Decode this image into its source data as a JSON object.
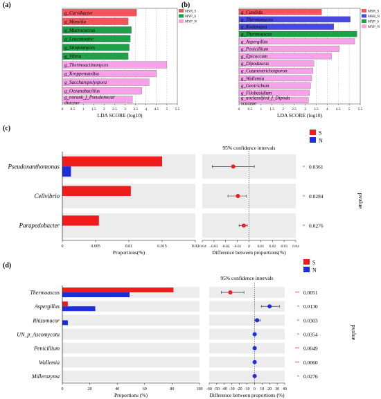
{
  "chart_data": [
    {
      "panel": "(a)",
      "type": "bar",
      "orientation": "horizontal",
      "xlabel": "LDA SCORE (log10)",
      "xlim": [
        0,
        5.5
      ],
      "xticks": [
        "0",
        "0.5",
        "1",
        "1.5",
        "2",
        "2.5",
        "3",
        "3.5",
        "4",
        "4.5",
        "5",
        "5.5"
      ],
      "grid": true,
      "legend_placement": "top-right",
      "legend": [
        {
          "name": "MSH_S",
          "color": "#f4545c"
        },
        {
          "name": "MYP_S",
          "color": "#1ea049"
        },
        {
          "name": "MYP_N",
          "color": "#f7a2e8"
        }
      ],
      "bars": [
        {
          "label": "g_Curvibacter",
          "value": 3.55,
          "group": "MSH_S"
        },
        {
          "label": "g_Massilia",
          "value": 3.15,
          "group": "MSH_S"
        },
        {
          "label": "g_Macrococcus",
          "value": 3.3,
          "group": "MYP_S"
        },
        {
          "label": "g_Leuconostoc",
          "value": 3.25,
          "group": "MYP_S"
        },
        {
          "label": "g_Streptomyces",
          "value": 3.2,
          "group": "MYP_S"
        },
        {
          "label": "g_Vibrio",
          "value": 3.15,
          "group": "MYP_S"
        },
        {
          "label": "g_Thermoactinomyces",
          "value": 5.0,
          "group": "MYP_N"
        },
        {
          "label": "g_Kroppenstedtia",
          "value": 4.5,
          "group": "MYP_N"
        },
        {
          "label": "g_Saccharopolyspora",
          "value": 4.15,
          "group": "MYP_N"
        },
        {
          "label": "g_Oceanobacillus",
          "value": 3.8,
          "group": "MYP_N"
        },
        {
          "label": "g_norank_f_Pseudonocar\ndiaceae",
          "value": 3.35,
          "group": "MYP_N"
        }
      ]
    },
    {
      "panel": "(b)",
      "type": "bar",
      "orientation": "horizontal",
      "xlabel": "LDA SCORE (log10)",
      "xlim": [
        0,
        5.5
      ],
      "xticks": [
        "0",
        "0.5",
        "1",
        "1.5",
        "2",
        "2.5",
        "3",
        "3.5",
        "4",
        "4.5",
        "5",
        "5.5"
      ],
      "grid": true,
      "legend_placement": "top-right",
      "legend": [
        {
          "name": "MSH_S",
          "color": "#f4545c"
        },
        {
          "name": "MSH_N",
          "color": "#4848e0"
        },
        {
          "name": "MYP_S",
          "color": "#1ea049"
        },
        {
          "name": "MYP_N",
          "color": "#f7a2e8"
        }
      ],
      "bars": [
        {
          "label": "g_Candida",
          "value": 3.75,
          "group": "MSH_S"
        },
        {
          "label": "g_Thermomyces",
          "value": 5.05,
          "group": "MSH_N"
        },
        {
          "label": "g_Kodamaea",
          "value": 4.3,
          "group": "MSH_N"
        },
        {
          "label": "g_Thermoascus",
          "value": 5.35,
          "group": "MYP_S"
        },
        {
          "label": "g_Aspergillus",
          "value": 5.25,
          "group": "MYP_N"
        },
        {
          "label": "g_Penicillium",
          "value": 4.55,
          "group": "MYP_N"
        },
        {
          "label": "g_Epicoccum",
          "value": 4.2,
          "group": "MYP_N"
        },
        {
          "label": "g_Dipodascus",
          "value": 3.4,
          "group": "MYP_N"
        },
        {
          "label": "g_Cutaneotrichosporon",
          "value": 3.35,
          "group": "MYP_N"
        },
        {
          "label": "g_Wallemia",
          "value": 3.3,
          "group": "MYP_N"
        },
        {
          "label": "g_Geotrichum",
          "value": 3.25,
          "group": "MYP_N"
        },
        {
          "label": "g_Filobasidium",
          "value": 3.2,
          "group": "MYP_N"
        },
        {
          "label": "g_unclassified_f_Dipoda\nscaceae",
          "value": 3.15,
          "group": "MYP_N"
        }
      ]
    },
    {
      "panel": "(c)",
      "type": "bar",
      "orientation": "horizontal",
      "xlabel": "Proportions(%)",
      "xlim": [
        0,
        0.02
      ],
      "xticks": [
        "0",
        "0.005",
        "0.01",
        "0.015",
        "0.02"
      ],
      "legend": [
        {
          "name": "S",
          "color": "#ee1c1c"
        },
        {
          "name": "N",
          "color": "#1d2ed8"
        }
      ],
      "legend_placement": "top-right",
      "categories": [
        "Pseudoxanthomonas",
        "Cellvibrio",
        "Parapedobacter"
      ],
      "series": [
        {
          "name": "S",
          "values": [
            0.015,
            0.0103,
            0.0055
          ]
        },
        {
          "name": "N",
          "values": [
            0.0013,
            0.0,
            0.0
          ]
        }
      ],
      "ci": {
        "title": "95% confidence intervals",
        "xlabel": "Difference between proportions(%)",
        "xlim": [
          -0.04,
          0.04
        ],
        "xticks": [
          "-0.04",
          "-0.03",
          "-0.02",
          "-0.01",
          "0",
          "0.01",
          "0.02",
          "0.03",
          "0.04"
        ],
        "points": [
          {
            "est": -0.0135,
            "lo": -0.0315,
            "hi": 0.0045,
            "color": "#ee1c1c"
          },
          {
            "est": -0.0095,
            "lo": -0.018,
            "hi": -0.0025,
            "color": "#ee1c1c"
          },
          {
            "est": -0.0045,
            "lo": -0.0085,
            "hi": -0.0015,
            "color": "#ee1c1c"
          }
        ]
      },
      "pvalue_label": "pvalue",
      "pvalues": [
        {
          "stars": "*",
          "value": "0.0361"
        },
        {
          "stars": "*",
          "value": "0.0284"
        },
        {
          "stars": "*",
          "value": "0.0276"
        }
      ]
    },
    {
      "panel": "(d)",
      "type": "bar",
      "orientation": "horizontal",
      "xlabel": "Proportions (%)",
      "xlim": [
        0,
        100
      ],
      "xticks": [
        "0",
        "20",
        "40",
        "60",
        "80",
        "100"
      ],
      "legend": [
        {
          "name": "S",
          "color": "#ee1c1c"
        },
        {
          "name": "N",
          "color": "#1d2ed8"
        }
      ],
      "legend_placement": "top-right",
      "categories": [
        "Thermoascus",
        "Aspergillus",
        "Rhizomucor",
        "UN_p_Ascomycota",
        "Penicillium",
        "Wallemia",
        "Millerozyma"
      ],
      "series": [
        {
          "name": "S",
          "values": [
            81,
            4,
            0,
            0,
            0,
            0,
            0
          ]
        },
        {
          "name": "N",
          "values": [
            49,
            24,
            4,
            0,
            0,
            0,
            0
          ]
        }
      ],
      "ci": {
        "title": "95% confidence intervals",
        "xlabel": "Difference between proportions (%)",
        "xlim": [
          -60,
          40
        ],
        "xticks": [
          "-60",
          "-50",
          "-40",
          "-30",
          "-20",
          "-10",
          "0",
          "10",
          "20",
          "30",
          "40"
        ],
        "points": [
          {
            "est": -32,
            "lo": -44,
            "hi": -14,
            "color": "#ee1c1c"
          },
          {
            "est": 20,
            "lo": 9,
            "hi": 33,
            "color": "#1d2ed8"
          },
          {
            "est": 3.5,
            "lo": 0.5,
            "hi": 7.5,
            "color": "#1d2ed8"
          },
          {
            "est": 0.2,
            "lo": -0.3,
            "hi": 0.8,
            "color": "#1d2ed8"
          },
          {
            "est": 0.2,
            "lo": -0.3,
            "hi": 0.8,
            "color": "#1d2ed8"
          },
          {
            "est": 0.2,
            "lo": -0.3,
            "hi": 0.8,
            "color": "#1d2ed8"
          },
          {
            "est": 0.2,
            "lo": -0.3,
            "hi": 0.8,
            "color": "#1d2ed8"
          }
        ]
      },
      "pvalue_label": "pvalue",
      "pvalues": [
        {
          "stars": "**",
          "value": "0.0051"
        },
        {
          "stars": "*",
          "value": "0.0130"
        },
        {
          "stars": "*",
          "value": "0.0303"
        },
        {
          "stars": "*",
          "value": "0.0354"
        },
        {
          "stars": "**",
          "value": "0.0049"
        },
        {
          "stars": "**",
          "value": "0.0060"
        },
        {
          "stars": "*",
          "value": "0.0276"
        }
      ]
    }
  ]
}
